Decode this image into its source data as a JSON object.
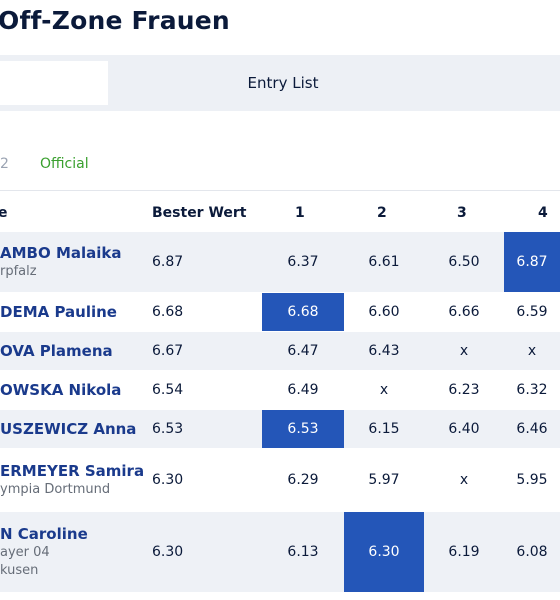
{
  "page": {
    "title": "Off-Zone Frauen"
  },
  "tabs": {
    "entry_list": "Entry List"
  },
  "status": {
    "round": "2",
    "official": "Official"
  },
  "headers": {
    "name": "e",
    "best": "Bester Wert",
    "a1": "1",
    "a2": "2",
    "a3": "3",
    "a4": "4"
  },
  "colors": {
    "highlight": "#2456b8",
    "name": "#1a3a8c",
    "official": "#3aa02f"
  },
  "rows": [
    {
      "name": "AMBO Malaika",
      "club": [
        "rpfalz"
      ],
      "best": "6.87",
      "a": [
        "6.37",
        "6.61",
        "6.50",
        "6.87"
      ],
      "hl": 3
    },
    {
      "name": "DEMA Pauline",
      "club": [],
      "best": "6.68",
      "a": [
        "6.68",
        "6.60",
        "6.66",
        "6.59"
      ],
      "hl": 0
    },
    {
      "name": "OVA Plamena",
      "club": [],
      "best": "6.67",
      "a": [
        "6.47",
        "6.43",
        "x",
        "x"
      ],
      "hl": -1
    },
    {
      "name": "OWSKA Nikola",
      "club": [],
      "best": "6.54",
      "a": [
        "6.49",
        "x",
        "6.23",
        "6.32"
      ],
      "hl": -1
    },
    {
      "name": "USZEWICZ Anna",
      "club": [],
      "best": "6.53",
      "a": [
        "6.53",
        "6.15",
        "6.40",
        "6.46"
      ],
      "hl": 0
    },
    {
      "name": "ERMEYER Samira",
      "club": [
        "ympia Dortmund"
      ],
      "best": "6.30",
      "a": [
        "6.29",
        "5.97",
        "x",
        "5.95"
      ],
      "hl": -1
    },
    {
      "name": "N Caroline",
      "club": [
        "ayer 04",
        "kusen"
      ],
      "best": "6.30",
      "a": [
        "6.13",
        "6.30",
        "6.19",
        "6.08"
      ],
      "hl": 1
    }
  ]
}
